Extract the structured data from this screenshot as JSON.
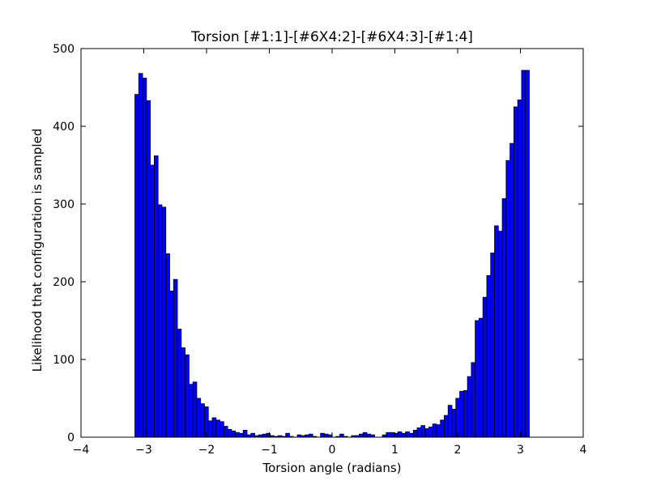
{
  "chart_data": {
    "type": "bar",
    "title": "Torsion [#1:1]-[#6X4:2]-[#6X4:3]-[#1:4]",
    "xlabel": "Torsion angle (radians)",
    "ylabel": "Likelihood that configuration is sampled",
    "xlim": [
      -4,
      4
    ],
    "ylim": [
      0,
      500
    ],
    "xticks": [
      -4,
      -3,
      -2,
      -1,
      0,
      1,
      2,
      3,
      4
    ],
    "yticks": [
      0,
      100,
      200,
      300,
      400,
      500
    ],
    "xtick_labels": [
      "−4",
      "−3",
      "−2",
      "−1",
      "0",
      "1",
      "2",
      "3",
      "4"
    ],
    "ytick_labels": [
      "0",
      "100",
      "200",
      "300",
      "400",
      "500"
    ],
    "bin_range": [
      -3.1416,
      3.1416
    ],
    "bar_color": "#0000ff",
    "edge_color": "#000000",
    "grid": false,
    "values": [
      441,
      468,
      462,
      433,
      350,
      362,
      299,
      296,
      236,
      188,
      203,
      139,
      115,
      106,
      68,
      71,
      50,
      43,
      39,
      21,
      25,
      22,
      20,
      14,
      10,
      8,
      6,
      5,
      9,
      3,
      5,
      2,
      3,
      4,
      5,
      2,
      1,
      2,
      1,
      5,
      1,
      0,
      3,
      2,
      3,
      4,
      1,
      0,
      5,
      4,
      3,
      0,
      1,
      4,
      1,
      0,
      2,
      2,
      4,
      6,
      4,
      3,
      0,
      0,
      3,
      6,
      6,
      5,
      7,
      5,
      7,
      5,
      9,
      12,
      15,
      11,
      13,
      17,
      16,
      22,
      28,
      41,
      36,
      50,
      59,
      60,
      78,
      96,
      150,
      153,
      180,
      208,
      237,
      272,
      265,
      307,
      356,
      378,
      425,
      434,
      472,
      472
    ]
  }
}
